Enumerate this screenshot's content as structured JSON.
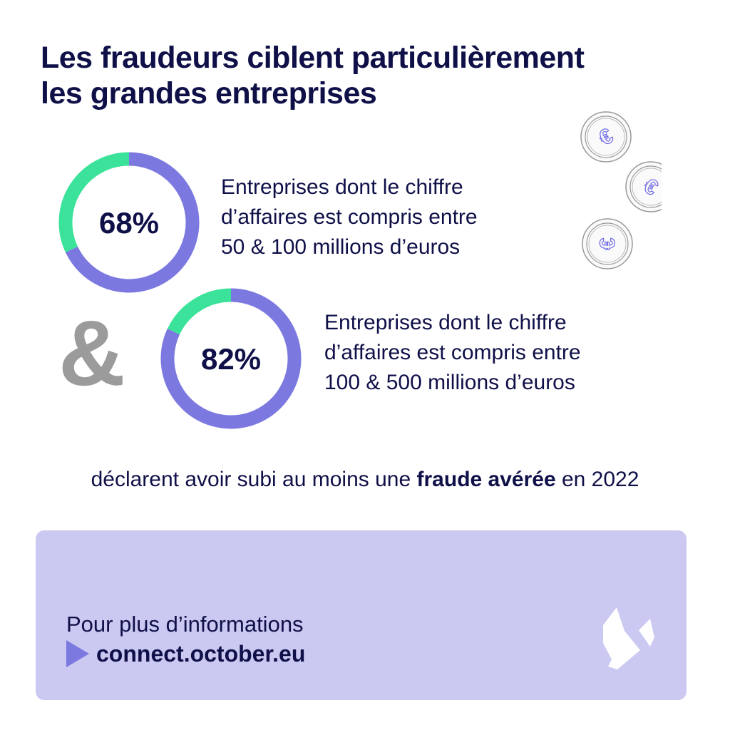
{
  "title": [
    "Les fraudeurs ciblent particulièrement",
    "les grandes entreprises"
  ],
  "colors": {
    "accent": "#7b78e0",
    "secondary": "#3be39a",
    "text": "#0f1048",
    "panel": "#cbc8f1",
    "ampersand": "#9b9b9b"
  },
  "chart_data": [
    {
      "type": "pie",
      "style": "donut",
      "slices": [
        {
          "value": 68,
          "color": "#7b78e0"
        },
        {
          "value": 32,
          "color": "#3be39a"
        }
      ],
      "label": "68%",
      "description": [
        "Entreprises dont le chiffre",
        "d’affaires est compris entre",
        "50 & 100 millions d’euros"
      ]
    },
    {
      "type": "pie",
      "style": "donut",
      "slices": [
        {
          "value": 82,
          "color": "#7b78e0"
        },
        {
          "value": 18,
          "color": "#3be39a"
        }
      ],
      "label": "82%",
      "description": [
        "Entreprises dont le chiffre",
        "d’affaires est compris entre",
        "100 & 500 millions d’euros"
      ]
    }
  ],
  "ampersand": "&",
  "caption": {
    "before": "déclarent avoir subi au moins une ",
    "bold": "fraude avérée",
    "after": " en 2022"
  },
  "footer": {
    "more": "Pour plus d’informations",
    "link": "connect.october.eu",
    "play_icon": "play-triangle-icon",
    "logo": "october-bird-logo"
  },
  "decor": {
    "icon": "euro-coin-icon",
    "count": 3
  }
}
